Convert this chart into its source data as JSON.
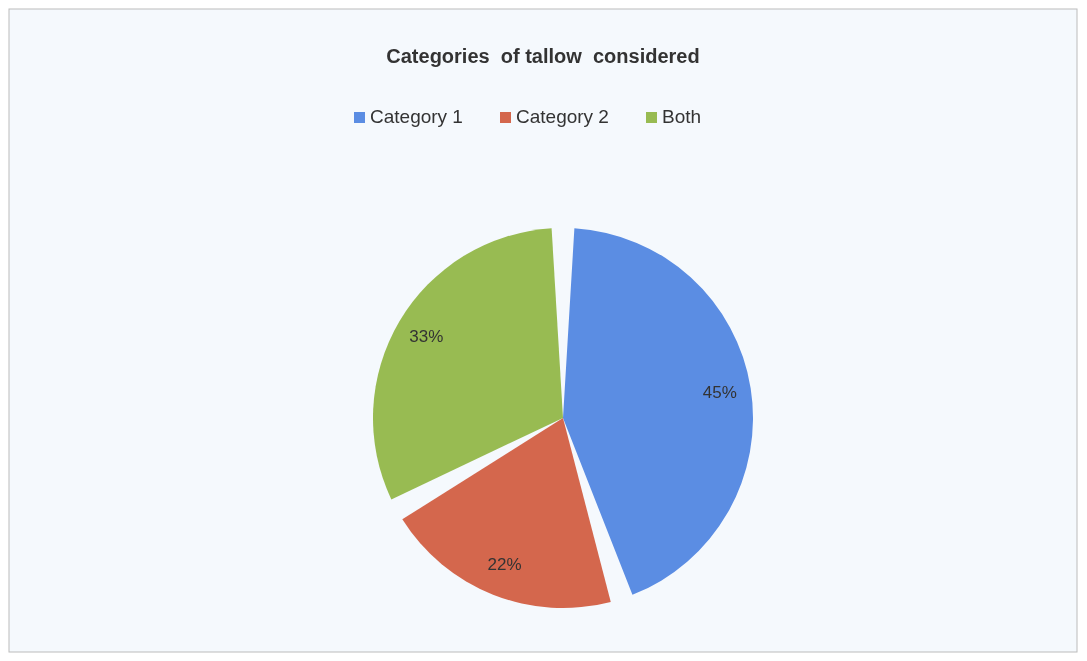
{
  "chart_data": {
    "type": "pie",
    "title": "Categories  of tallow  considered",
    "categories": [
      "Category 1",
      "Category 2",
      "Both"
    ],
    "values": [
      45,
      22,
      33
    ],
    "colors": [
      "#5b8de3",
      "#d4674d",
      "#98bb52"
    ],
    "value_labels": [
      "45%",
      "22%",
      "33%"
    ],
    "data_labels": true,
    "legend": "top"
  }
}
